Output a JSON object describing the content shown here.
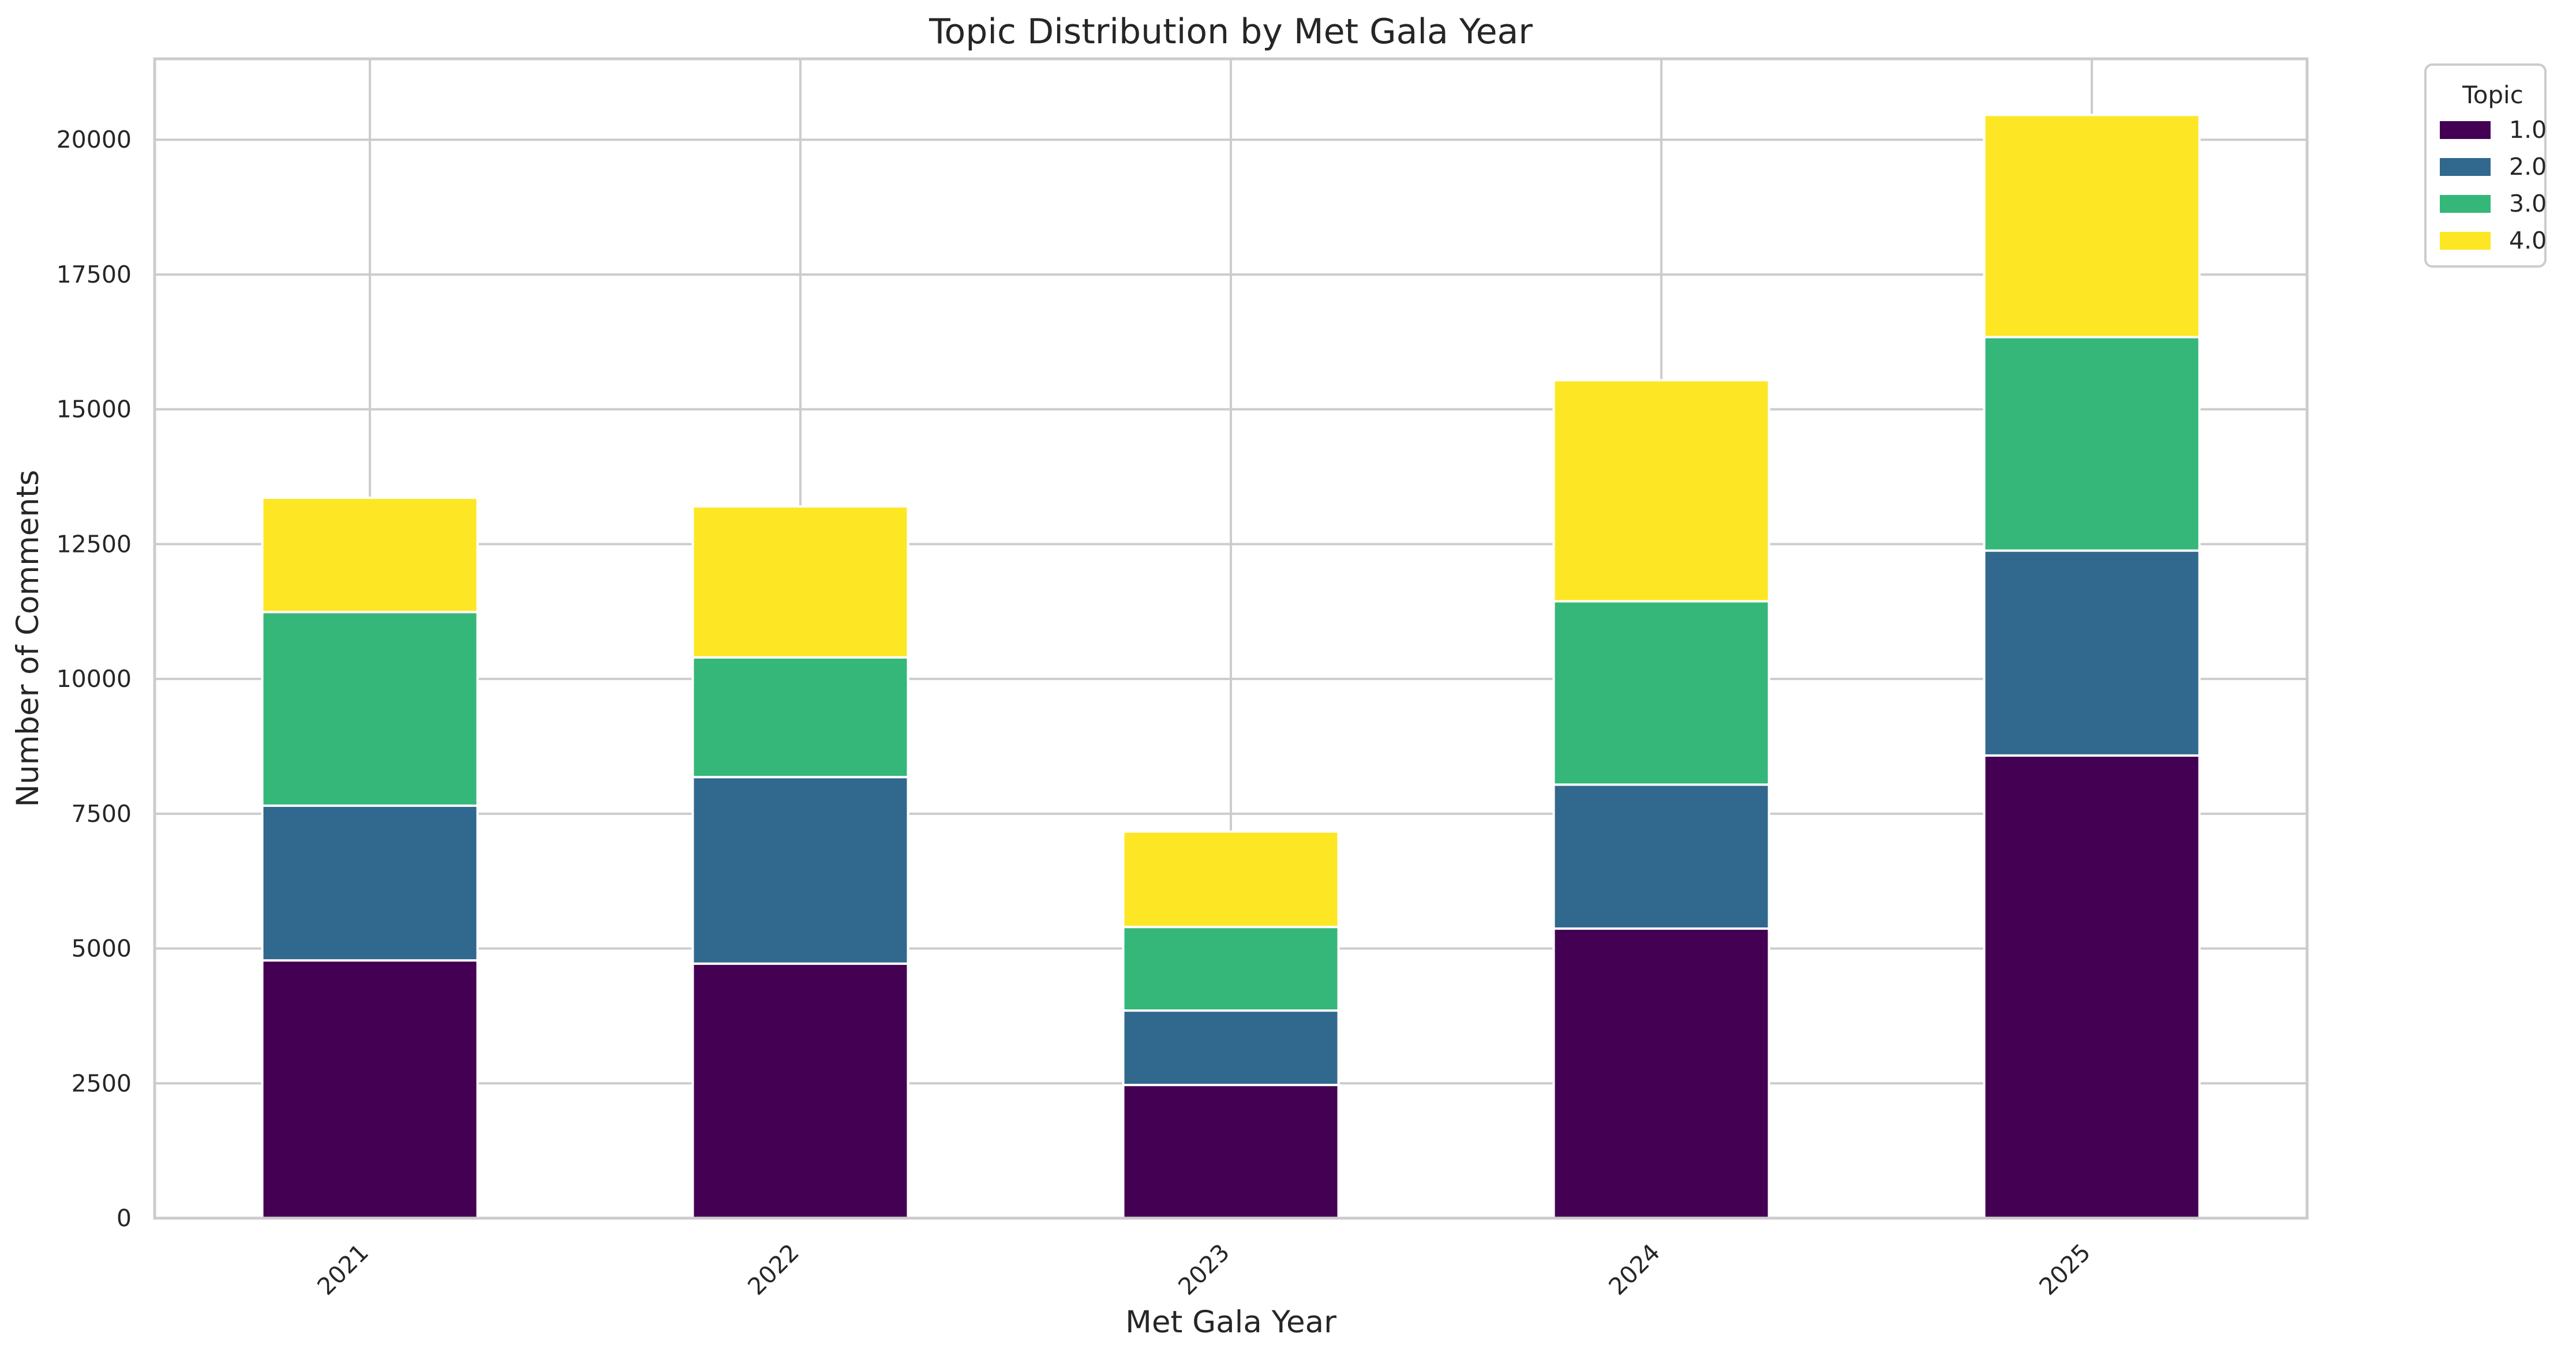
{
  "chart_data": {
    "type": "bar",
    "stacked": true,
    "title": "Topic Distribution by Met Gala Year",
    "xlabel": "Met Gala Year",
    "ylabel": "Number of Comments",
    "categories": [
      "2021",
      "2022",
      "2023",
      "2024",
      "2025"
    ],
    "series": [
      {
        "name": "1.0",
        "color": "#440154",
        "values": [
          4780,
          4720,
          2470,
          5370,
          8580
        ]
      },
      {
        "name": "2.0",
        "color": "#31688e",
        "values": [
          2870,
          3460,
          1380,
          2670,
          3800
        ]
      },
      {
        "name": "3.0",
        "color": "#35b779",
        "values": [
          3590,
          2220,
          1550,
          3400,
          3960
        ]
      },
      {
        "name": "4.0",
        "color": "#fde725",
        "values": [
          2120,
          2800,
          1770,
          4100,
          4120
        ]
      }
    ],
    "ylim": [
      0,
      21500
    ],
    "yticks": [
      0,
      2500,
      5000,
      7500,
      10000,
      12500,
      15000,
      17500,
      20000
    ],
    "grid": true,
    "legend": {
      "title": "Topic",
      "placement": "outside-top-right"
    }
  }
}
